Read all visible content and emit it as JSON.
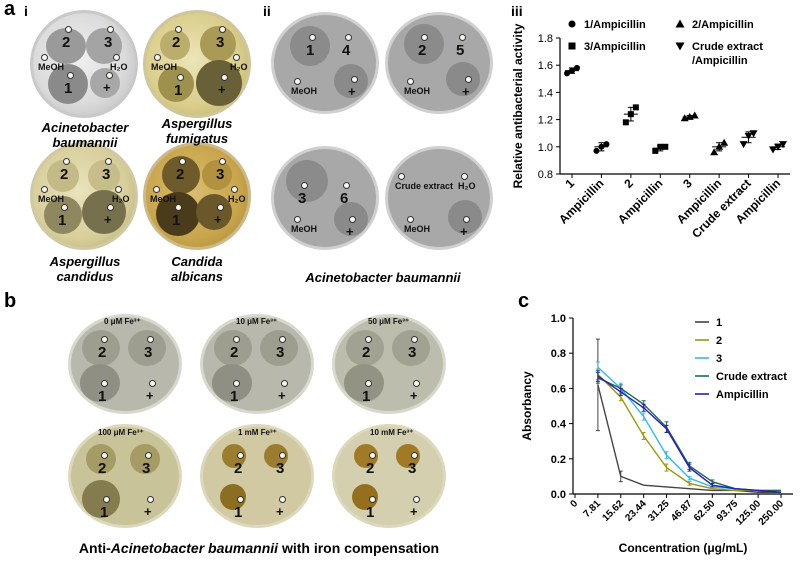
{
  "panel_a": {
    "letter": "a",
    "sub_i": "i",
    "sub_ii": "ii",
    "sub_iii": "iii",
    "species": [
      {
        "line1": "Acinetobacter",
        "line2": "baumannii"
      },
      {
        "line1": "Aspergillus",
        "line2": "fumigatus"
      },
      {
        "line1": "Aspergillus",
        "line2": "candidus"
      },
      {
        "line1": "Candida",
        "line2": "albicans"
      }
    ],
    "species_ii": "Acinetobacter baumannii",
    "plate_labels": {
      "one": "1",
      "two": "2",
      "three": "3",
      "four": "4",
      "five": "5",
      "six": "6",
      "meoh": "MeOH",
      "h2o": "H₂O",
      "plus": "+",
      "crude": "Crude extract"
    }
  },
  "panel_b": {
    "letter": "b",
    "plates": [
      "0 μM Fe³⁺",
      "10 μM Fe³⁺",
      "50 μM Fe³⁺",
      "100 μM Fe³⁺",
      "1 mM Fe³⁺",
      "10 mM Fe³⁺"
    ],
    "caption_pre": "Anti-",
    "caption_italic": "Acinetobacter baumannii",
    "caption_post": " with iron compensation"
  },
  "panel_c": {
    "letter": "c"
  },
  "colors": {
    "bg": "#ffffff",
    "c_series": [
      "#444444",
      "#9a9a10",
      "#33bbee",
      "#1e6a5e",
      "#2a1eb0"
    ]
  },
  "chart_data": [
    {
      "type": "scatter",
      "panel": "a-iii",
      "title": "",
      "xlabel": "",
      "ylabel": "Relative antibacterial activity",
      "ylim": [
        0.8,
        1.8
      ],
      "yticks": [
        "0.8",
        "1.0",
        "1.2",
        "1.4",
        "1.6",
        "1.8"
      ],
      "categories": [
        "1",
        "Ampicillin",
        "2",
        "Ampicillin",
        "3",
        "Ampicillin",
        "Crude extract",
        "Ampicillin"
      ],
      "legend": [
        "1/Ampicillin",
        "2/Ampicillin",
        "3/Ampicillin",
        "Crude extract /Ampicillin"
      ],
      "groups": [
        {
          "marker": "circle",
          "points": [
            [
              1.54,
              1.56,
              1.58
            ],
            [
              0.97,
              1.0,
              1.02
            ]
          ]
        },
        {
          "marker": "square",
          "points": [
            [
              1.18,
              1.24,
              1.29
            ],
            [
              0.97,
              1.0,
              1.0
            ]
          ]
        },
        {
          "marker": "triangle-up",
          "points": [
            [
              1.21,
              1.22,
              1.23
            ],
            [
              0.96,
              1.0,
              1.03
            ]
          ]
        },
        {
          "marker": "triangle-down",
          "points": [
            [
              1.02,
              1.08,
              1.1
            ],
            [
              0.98,
              1.0,
              1.02
            ]
          ]
        }
      ],
      "means": [
        1.56,
        1.0,
        1.24,
        0.99,
        1.22,
        1.0,
        1.07,
        1.0
      ],
      "errors": [
        0.02,
        0.03,
        0.05,
        0.02,
        0.01,
        0.03,
        0.04,
        0.02
      ]
    },
    {
      "type": "line",
      "panel": "c",
      "title": "",
      "xlabel": "Concentration (μg/mL)",
      "ylabel": "Absorbancy",
      "ylim": [
        0.0,
        1.0
      ],
      "yticks": [
        "0.0",
        "0.2",
        "0.4",
        "0.6",
        "0.8",
        "1.0"
      ],
      "categories": [
        "0",
        "7.81",
        "15.62",
        "23.44",
        "31.25",
        "46.87",
        "62.50",
        "93.75",
        "125.00",
        "250.00"
      ],
      "series": [
        {
          "name": "1",
          "values": [
            null,
            0.62,
            0.1,
            0.05,
            0.04,
            0.03,
            0.02,
            0.02,
            0.01,
            0.01
          ],
          "err": [
            0,
            0.26,
            0.03,
            0,
            0,
            0,
            0,
            0,
            0,
            0
          ]
        },
        {
          "name": "2",
          "values": [
            null,
            0.68,
            0.55,
            0.33,
            0.15,
            0.06,
            0.03,
            0.02,
            0.02,
            0.01
          ],
          "err": [
            0,
            0.03,
            0.02,
            0.02,
            0.02,
            0.01,
            0,
            0,
            0,
            0
          ]
        },
        {
          "name": "3",
          "values": [
            null,
            0.72,
            0.6,
            0.44,
            0.22,
            0.09,
            0.04,
            0.03,
            0.02,
            0.02
          ],
          "err": [
            0,
            0.03,
            0.03,
            0.02,
            0.02,
            0.01,
            0,
            0,
            0,
            0
          ]
        },
        {
          "name": "Crude extract",
          "values": [
            null,
            0.66,
            0.6,
            0.51,
            0.38,
            0.16,
            0.07,
            0.03,
            0.02,
            0.02
          ],
          "err": [
            0,
            0.03,
            0.02,
            0.02,
            0.03,
            0.02,
            0.01,
            0,
            0,
            0
          ]
        },
        {
          "name": "Ampicillin",
          "values": [
            null,
            0.67,
            0.58,
            0.49,
            0.37,
            0.15,
            0.05,
            0.03,
            0.02,
            0.01
          ],
          "err": [
            0,
            0.03,
            0.02,
            0.02,
            0.02,
            0.02,
            0.01,
            0,
            0,
            0
          ]
        }
      ]
    }
  ]
}
